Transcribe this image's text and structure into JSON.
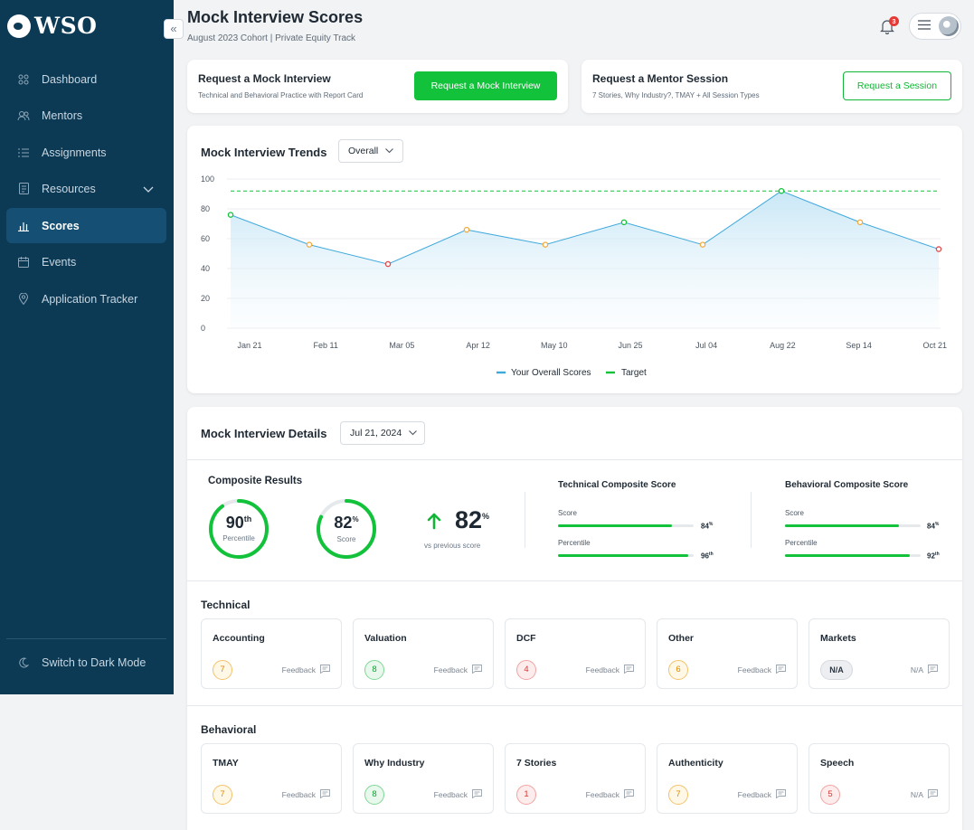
{
  "brand": {
    "logo_text": "WSO"
  },
  "sidebar": {
    "collapse_icon": "«",
    "items": [
      {
        "label": "Dashboard",
        "icon": "grid-icon"
      },
      {
        "label": "Mentors",
        "icon": "users-icon"
      },
      {
        "label": "Assignments",
        "icon": "list-icon"
      },
      {
        "label": "Resources",
        "icon": "document-icon"
      },
      {
        "label": "Scores",
        "icon": "bar-chart-icon",
        "active": true
      },
      {
        "label": "Events",
        "icon": "calendar-icon"
      },
      {
        "label": "Application Tracker",
        "icon": "location-pin-icon"
      }
    ],
    "dark_mode_label": "Switch to Dark Mode"
  },
  "header": {
    "title": "Mock Interview Scores",
    "subtitle": "August 2023 Cohort | Private Equity Track",
    "notification_count": "3"
  },
  "request_mock": {
    "title": "Request a Mock Interview",
    "subtitle": "Technical and Behavioral Practice with Report Card",
    "button": "Request a Mock Interview"
  },
  "request_mentor": {
    "title": "Request a Mentor Session",
    "subtitle": "7 Stories, Why Industry?, TMAY + All Session Types",
    "button": "Request a Session"
  },
  "trends": {
    "title": "Mock Interview Trends",
    "filter": "Overall"
  },
  "chart_data": {
    "type": "line",
    "categories": [
      "Jan 21",
      "Feb 11",
      "Mar 05",
      "Apr 12",
      "May 10",
      "Jun 25",
      "Jul 04",
      "Aug 22",
      "Sep 14",
      "Oct 21"
    ],
    "series": [
      {
        "name": "Your Overall Scores",
        "values": [
          76,
          56,
          43,
          66,
          56,
          71,
          56,
          92,
          71,
          53
        ],
        "color": "#3fa9dc"
      },
      {
        "name": "Target",
        "values": [
          92,
          92,
          92,
          92,
          92,
          92,
          92,
          92,
          92,
          92
        ],
        "color": "#12c23a",
        "style": "dashed"
      }
    ],
    "point_colors": [
      "#12c23a",
      "#f2a93b",
      "#e04848",
      "#f2a93b",
      "#f2a93b",
      "#12c23a",
      "#f2a93b",
      "#12c23a",
      "#f2a93b",
      "#e04848"
    ],
    "ylim": [
      0,
      100
    ],
    "yticks": [
      "0",
      "20",
      "40",
      "60",
      "80",
      "100"
    ],
    "grid": true,
    "legend": "bottom-center"
  },
  "details": {
    "title": "Mock Interview Details",
    "date": "Jul 21, 2024",
    "composite_title": "Composite Results",
    "percentile_value": "90",
    "percentile_suffix": "th",
    "percentile_label": "Percentile",
    "percentile_fraction": 0.9,
    "score_value": "82",
    "score_suffix": "%",
    "score_label": "Score",
    "score_fraction": 0.82,
    "delta_value": "82",
    "delta_suffix": "%",
    "delta_label": "vs previous score",
    "technical": {
      "title": "Technical Composite Score",
      "score_label": "Score",
      "score_value": "84",
      "score_suffix": "%",
      "score_fraction": 0.84,
      "pct_label": "Percentile",
      "pct_value": "96",
      "pct_suffix": "th",
      "pct_fraction": 0.96
    },
    "behavioral": {
      "title": "Behavioral Composite Score",
      "score_label": "Score",
      "score_value": "84",
      "score_suffix": "%",
      "score_fraction": 0.84,
      "pct_label": "Percentile",
      "pct_value": "92",
      "pct_suffix": "th",
      "pct_fraction": 0.92
    }
  },
  "technical_section": {
    "title": "Technical",
    "tiles": [
      {
        "name": "Accounting",
        "score": "7",
        "color": "yellow",
        "action": "Feedback"
      },
      {
        "name": "Valuation",
        "score": "8",
        "color": "green",
        "action": "Feedback"
      },
      {
        "name": "DCF",
        "score": "4",
        "color": "red",
        "action": "Feedback"
      },
      {
        "name": "Other",
        "score": "6",
        "color": "yellow",
        "action": "Feedback"
      },
      {
        "name": "Markets",
        "score": "N/A",
        "color": "na",
        "action": "N/A"
      }
    ]
  },
  "behavioral_section": {
    "title": "Behavioral",
    "tiles": [
      {
        "name": "TMAY",
        "score": "7",
        "color": "yellow",
        "action": "Feedback"
      },
      {
        "name": "Why Industry",
        "score": "8",
        "color": "green",
        "action": "Feedback"
      },
      {
        "name": "7 Stories",
        "score": "1",
        "color": "red",
        "action": "Feedback"
      },
      {
        "name": "Authenticity",
        "score": "7",
        "color": "yellow",
        "action": "Feedback"
      },
      {
        "name": "Speech",
        "score": "5",
        "color": "red",
        "action": "N/A"
      }
    ]
  }
}
